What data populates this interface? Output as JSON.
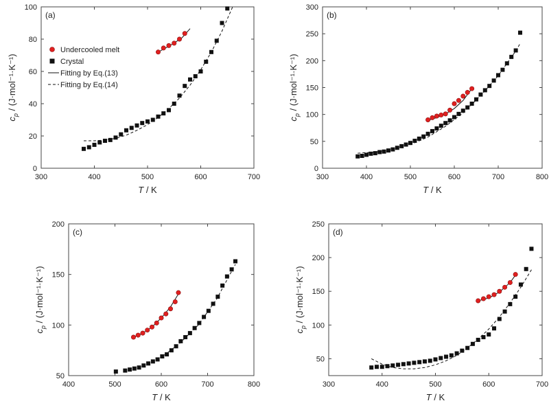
{
  "colors": {
    "melt": "#e02020",
    "crystal": "#111111",
    "axis": "#444444"
  },
  "legend": [
    {
      "key": "melt",
      "label": "Undercooled melt",
      "marker": "circle"
    },
    {
      "key": "crystal",
      "label": "Crystal",
      "marker": "square"
    },
    {
      "key": "fit13",
      "label": "Fitting by Eq.(13)",
      "marker": "solid-line"
    },
    {
      "key": "fit14",
      "label": "Fitting by Eq.(14)",
      "marker": "dashed-line"
    }
  ],
  "chart_data": [
    {
      "type": "scatter",
      "panel_label": "(a)",
      "xlabel": {
        "main": "T",
        "unit": " / K"
      },
      "ylabel": {
        "main": "c",
        "sub": "p",
        "unit": " / (J·mol⁻¹·K⁻¹)"
      },
      "xlim": [
        300,
        700
      ],
      "ylim": [
        0,
        100
      ],
      "xticks": [
        300,
        400,
        500,
        600,
        700
      ],
      "yticks": [
        0,
        20,
        40,
        60,
        80,
        100
      ],
      "legend_placement": "top-left",
      "series": [
        {
          "key": "melt",
          "x": [
            520,
            530,
            540,
            550,
            560,
            570
          ],
          "y": [
            72,
            74.5,
            76,
            77.5,
            80,
            83.5
          ]
        },
        {
          "key": "crystal",
          "x": [
            380,
            390,
            400,
            410,
            420,
            430,
            440,
            450,
            460,
            470,
            480,
            490,
            500,
            510,
            520,
            530,
            540,
            550,
            560,
            570,
            580,
            590,
            600,
            610,
            620,
            630,
            640,
            650
          ],
          "y": [
            12,
            13,
            14.5,
            16,
            17,
            17.5,
            19,
            21,
            23.5,
            25,
            26.5,
            28,
            29,
            30,
            32,
            34,
            36,
            40,
            45,
            51,
            55,
            57,
            60,
            66,
            72,
            79,
            90,
            99
          ]
        },
        {
          "key": "fit13",
          "x": [
            520,
            535,
            550,
            565,
            580
          ],
          "y": [
            72,
            74.7,
            77.6,
            80.9,
            86.5
          ]
        },
        {
          "key": "fit14",
          "x": [
            380,
            400,
            420,
            440,
            460,
            480,
            500,
            520,
            540,
            560,
            580,
            600,
            620,
            640,
            660
          ],
          "y": [
            17,
            17,
            17.5,
            18.5,
            20.5,
            23.5,
            27,
            31.5,
            37,
            43.5,
            51.5,
            61,
            72,
            85,
            100
          ]
        }
      ]
    },
    {
      "type": "scatter",
      "panel_label": "(b)",
      "xlabel": {
        "main": "T",
        "unit": " / K"
      },
      "ylabel": {
        "main": "c",
        "sub": "p",
        "unit": " / (J·mol⁻¹·K⁻¹)"
      },
      "xlim": [
        300,
        800
      ],
      "ylim": [
        0,
        300
      ],
      "xticks": [
        300,
        400,
        500,
        600,
        700,
        800
      ],
      "yticks": [
        0,
        50,
        100,
        150,
        200,
        250,
        300
      ],
      "series": [
        {
          "key": "melt",
          "x": [
            540,
            550,
            560,
            570,
            580,
            590,
            600,
            610,
            620,
            630,
            640
          ],
          "y": [
            90,
            94,
            97,
            99,
            101,
            108,
            120,
            126,
            134,
            141,
            148
          ]
        },
        {
          "key": "crystal",
          "x": [
            380,
            390,
            400,
            410,
            420,
            430,
            440,
            450,
            460,
            470,
            480,
            490,
            500,
            510,
            520,
            530,
            540,
            550,
            560,
            570,
            580,
            590,
            600,
            610,
            620,
            630,
            640,
            650,
            660,
            670,
            680,
            690,
            700,
            710,
            720,
            730,
            740,
            750
          ],
          "y": [
            22,
            23,
            25,
            27,
            28,
            30,
            31,
            33,
            35,
            38,
            41,
            44,
            47,
            51,
            55,
            59,
            64,
            69,
            74,
            79,
            84,
            89,
            95,
            101,
            107,
            113,
            120,
            128,
            137,
            145,
            153,
            163,
            173,
            183,
            195,
            207,
            219,
            252
          ]
        },
        {
          "key": "fit13",
          "x": [
            540,
            560,
            580,
            600,
            620,
            640
          ],
          "y": [
            89,
            94,
            101,
            111,
            126,
            148
          ]
        },
        {
          "key": "fit14",
          "x": [
            380,
            420,
            460,
            500,
            540,
            580,
            620,
            660,
            700,
            740,
            750
          ],
          "y": [
            28,
            30,
            35,
            44,
            58,
            78,
            103,
            135,
            172,
            218,
            232
          ]
        }
      ]
    },
    {
      "type": "scatter",
      "panel_label": "(c)",
      "xlabel": {
        "main": "T",
        "unit": " / K"
      },
      "ylabel": {
        "main": "c",
        "sub": "p",
        "unit": " / (J·mol⁻¹·K⁻¹)"
      },
      "xlim": [
        400,
        800
      ],
      "ylim": [
        50,
        200
      ],
      "xticks": [
        400,
        500,
        600,
        700,
        800
      ],
      "yticks": [
        50,
        100,
        150,
        200
      ],
      "series": [
        {
          "key": "melt",
          "x": [
            540,
            550,
            560,
            570,
            580,
            590,
            600,
            610,
            620,
            630,
            637
          ],
          "y": [
            88,
            90,
            92,
            95,
            98,
            102,
            107,
            111,
            116,
            123,
            132
          ]
        },
        {
          "key": "crystal",
          "x": [
            502,
            522,
            532,
            542,
            552,
            562,
            572,
            582,
            592,
            602,
            612,
            622,
            632,
            642,
            652,
            662,
            672,
            682,
            692,
            702,
            712,
            722,
            732,
            742,
            752,
            760
          ],
          "y": [
            54,
            55,
            56,
            57,
            58,
            60,
            62,
            64,
            66,
            69,
            71,
            75,
            79,
            84,
            88,
            92,
            97,
            102,
            108,
            114,
            121,
            128,
            139,
            148,
            155,
            163
          ]
        },
        {
          "key": "fit13",
          "x": [
            540,
            560,
            580,
            600,
            620,
            640
          ],
          "y": [
            88,
            92,
            98,
            107,
            118,
            133
          ]
        },
        {
          "key": "fit14",
          "x": [
            520,
            560,
            600,
            640,
            680,
            720,
            760
          ],
          "y": [
            55,
            59,
            68,
            82,
            100,
            126,
            160
          ]
        }
      ]
    },
    {
      "type": "scatter",
      "panel_label": "(d)",
      "xlabel": {
        "main": "T",
        "unit": " / K"
      },
      "ylabel": {
        "main": "c",
        "sub": "p",
        "unit": " / (J·mol⁻¹·K⁻¹)"
      },
      "xlim": [
        300,
        700
      ],
      "ylim": [
        25,
        250
      ],
      "xticks": [
        300,
        400,
        500,
        600,
        700
      ],
      "yticks": [
        50,
        100,
        150,
        200,
        250
      ],
      "series": [
        {
          "key": "melt",
          "x": [
            580,
            590,
            600,
            610,
            620,
            630,
            640,
            650
          ],
          "y": [
            136,
            139,
            142,
            145,
            150,
            156,
            163,
            175
          ]
        },
        {
          "key": "crystal",
          "x": [
            380,
            390,
            400,
            410,
            420,
            430,
            440,
            450,
            460,
            470,
            480,
            490,
            500,
            510,
            520,
            530,
            540,
            550,
            560,
            570,
            580,
            590,
            600,
            610,
            620,
            630,
            640,
            650,
            660,
            670,
            680
          ],
          "y": [
            37,
            38,
            38,
            39,
            40,
            41,
            42,
            43,
            44,
            45,
            46,
            47,
            49,
            51,
            53,
            55,
            58,
            62,
            66,
            72,
            78,
            82,
            86,
            95,
            109,
            120,
            131,
            142,
            160,
            183,
            213
          ]
        },
        {
          "key": "fit13",
          "x": [
            580,
            600,
            620,
            640,
            650
          ],
          "y": [
            136,
            140,
            149,
            163,
            174
          ]
        },
        {
          "key": "fit14",
          "x": [
            380,
            400,
            420,
            440,
            460,
            480,
            500,
            520,
            540,
            560,
            580,
            600,
            620,
            640,
            660,
            680
          ],
          "y": [
            50,
            42,
            37,
            35,
            35,
            37,
            41,
            47,
            55,
            66,
            79,
            94,
            112,
            133,
            156,
            182
          ]
        }
      ]
    }
  ]
}
